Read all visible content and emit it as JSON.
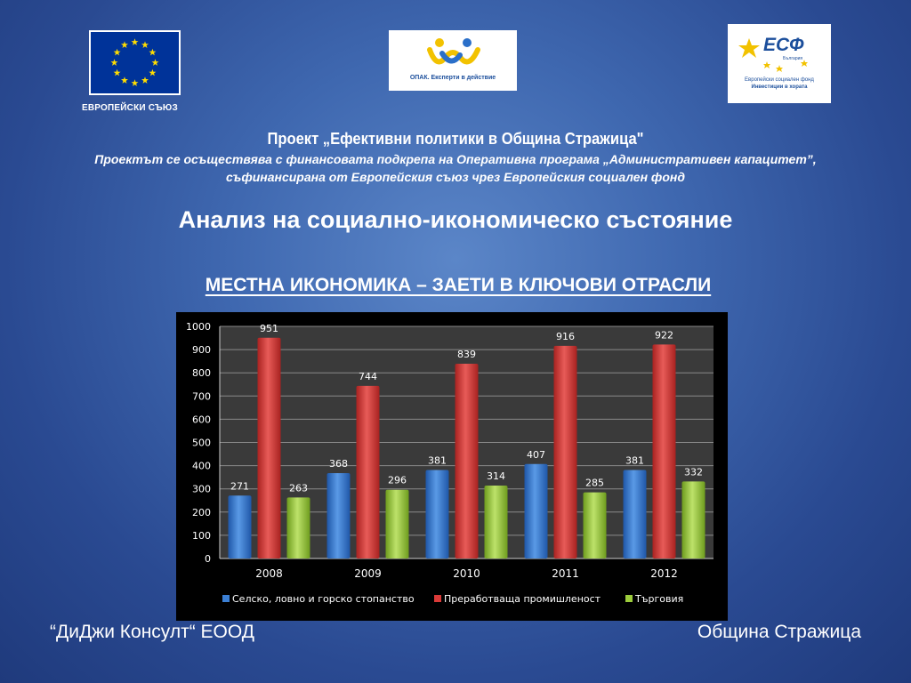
{
  "header": {
    "eu_caption": "ЕВРОПЕЙСКИ СЪЮЗ",
    "opak_caption": "ОПАК. Експерти в действие",
    "esf_title": "ЕСФ",
    "esf_country": "България",
    "esf_fund": "Европейски социален фонд",
    "esf_invest": "Инвестиции в хората"
  },
  "project": {
    "title": "Проект „Ефективни политики в Община Стражица\"",
    "line1": "Проектът се осъществява с финансовата подкрепа на Оперативна програма „Административен капацитет”,",
    "line2": "съфинансирана от Европейския съюз чрез Европейския социален фонд"
  },
  "analysis_title": "Анализ на социално-икономическо състояние",
  "chart_heading": "МЕСТНА ИКОНОМИКА – ЗАЕТИ В КЛЮЧОВИ ОТРАСЛИ",
  "footer": {
    "left": "“ДиДжи Консулт“ ЕООД",
    "right": "Община Стражица"
  },
  "colors": {
    "series": [
      "#3b7fd4",
      "#d93a38",
      "#9ccc3c"
    ],
    "background": "#3f68b0"
  },
  "chart_data": {
    "type": "bar",
    "categories": [
      "2008",
      "2009",
      "2010",
      "2011",
      "2012"
    ],
    "series": [
      {
        "name": "Селско, ловно и горско стопанство",
        "values": [
          271,
          368,
          381,
          407,
          381
        ]
      },
      {
        "name": "Преработваща промишленост",
        "values": [
          951,
          744,
          839,
          916,
          922
        ]
      },
      {
        "name": "Търговия",
        "values": [
          263,
          296,
          314,
          285,
          332
        ]
      }
    ],
    "ylim": [
      0,
      1000
    ],
    "yticks": [
      0,
      100,
      200,
      300,
      400,
      500,
      600,
      700,
      800,
      900,
      1000
    ],
    "grid": true,
    "legend": "bottom",
    "data_labels": true
  }
}
